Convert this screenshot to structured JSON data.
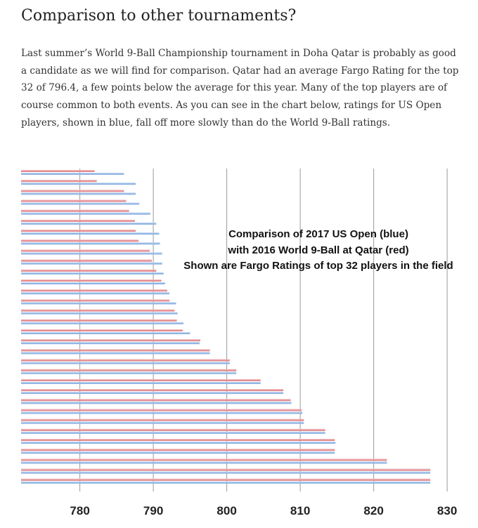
{
  "heading": "Comparison to other tournaments?",
  "paragraph": "Last summer’s World 9-Ball Championship tournament in Doha Qatar is probably as good a candidate as we will find for comparison.  Qatar had an average Fargo Rating for the top 32 of 796.4, a few points below the average for this year.   Many of the top players are of course common to both events.   As you can see in the chart below, ratings for US Open players, shown in blue, fall off more slowly than do the World 9-Ball ratings.",
  "chart_data": {
    "type": "bar",
    "orientation": "horizontal",
    "title_lines": [
      "Comparison of 2017 US Open (blue)",
      "with 2016 World 9-Ball at Qatar (red)",
      "Shown are Fargo Ratings of top 32 players in the field"
    ],
    "xlim": [
      772,
      830
    ],
    "xticks": [
      "780",
      "790",
      "800",
      "810",
      "820",
      "830"
    ],
    "grid": true,
    "series": [
      {
        "color": "#e38a8f",
        "values": [
          782.0,
          782.3,
          786.0,
          786.3,
          786.7,
          787.5,
          787.6,
          788.0,
          789.5,
          789.8,
          790.4,
          791.1,
          791.9,
          792.2,
          792.9,
          793.2,
          794.0,
          796.4,
          797.7,
          800.4,
          801.3,
          804.6,
          807.7,
          808.7,
          810.2,
          810.5,
          813.4,
          814.7,
          814.7,
          821.8,
          827.7,
          827.7
        ]
      },
      {
        "color": "#8fb4e3",
        "values": [
          786.0,
          787.6,
          787.6,
          788.1,
          789.6,
          790.4,
          790.8,
          790.9,
          791.2,
          791.2,
          791.4,
          791.6,
          792.2,
          793.1,
          793.3,
          794.1,
          795.0,
          796.3,
          797.7,
          800.4,
          801.3,
          804.6,
          807.7,
          808.8,
          810.3,
          810.5,
          813.4,
          814.8,
          814.7,
          821.8,
          827.7,
          827.7
        ]
      }
    ]
  }
}
